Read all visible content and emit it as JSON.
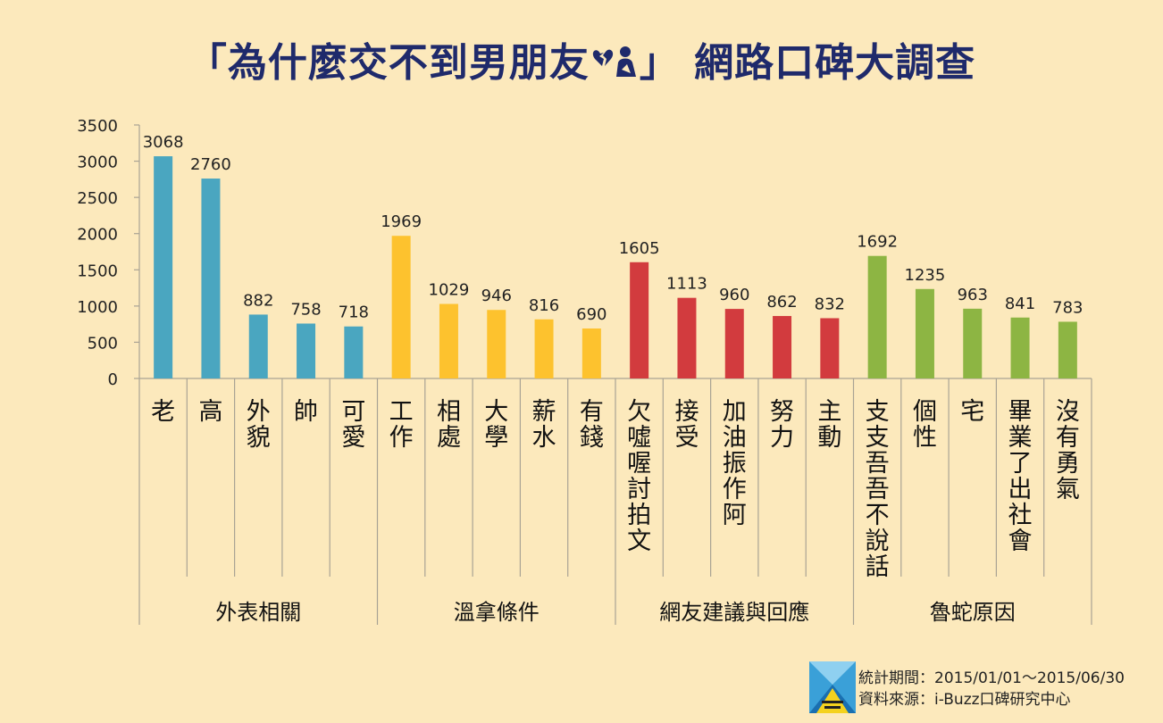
{
  "title": {
    "prefix": "「為什麼交不到男朋友",
    "suffix": "」 網路口碑大調查"
  },
  "footer": {
    "period": "統計期間：2015/01/01～2015/06/30",
    "source": "資料來源：i-Buzz口碑研究中心"
  },
  "chart_data": {
    "type": "bar",
    "y_ticks": [
      "0",
      "500",
      "1000",
      "1500",
      "2000",
      "2500",
      "3000",
      "3500"
    ],
    "ylim": [
      0,
      3500
    ],
    "grid": false,
    "groups": [
      {
        "name": "外表相關",
        "color": "#4aa6c0",
        "bars": [
          {
            "label": "老",
            "value": 3068
          },
          {
            "label": "高",
            "value": 2760
          },
          {
            "label": "外貌",
            "value": 882
          },
          {
            "label": "帥",
            "value": 758
          },
          {
            "label": "可愛",
            "value": 718
          }
        ]
      },
      {
        "name": "溫拿條件",
        "color": "#fdc22e",
        "bars": [
          {
            "label": "工作",
            "value": 1969
          },
          {
            "label": "相處",
            "value": 1029
          },
          {
            "label": "大學",
            "value": 946
          },
          {
            "label": "薪水",
            "value": 816
          },
          {
            "label": "有錢",
            "value": 690
          }
        ]
      },
      {
        "name": "網友建議與回應",
        "color": "#d23b3e",
        "bars": [
          {
            "label": "欠噓喔討拍文",
            "value": 1605
          },
          {
            "label": "接受",
            "value": 1113
          },
          {
            "label": "加油振作阿",
            "value": 960
          },
          {
            "label": "努力",
            "value": 862
          },
          {
            "label": "主動",
            "value": 832
          }
        ]
      },
      {
        "name": "魯蛇原因",
        "color": "#8db543",
        "bars": [
          {
            "label": "支支吾吾不說話",
            "value": 1692
          },
          {
            "label": "個性",
            "value": 1235
          },
          {
            "label": "宅",
            "value": 963
          },
          {
            "label": "畢業了出社會",
            "value": 841
          },
          {
            "label": "沒有勇氣",
            "value": 783
          }
        ]
      }
    ]
  }
}
